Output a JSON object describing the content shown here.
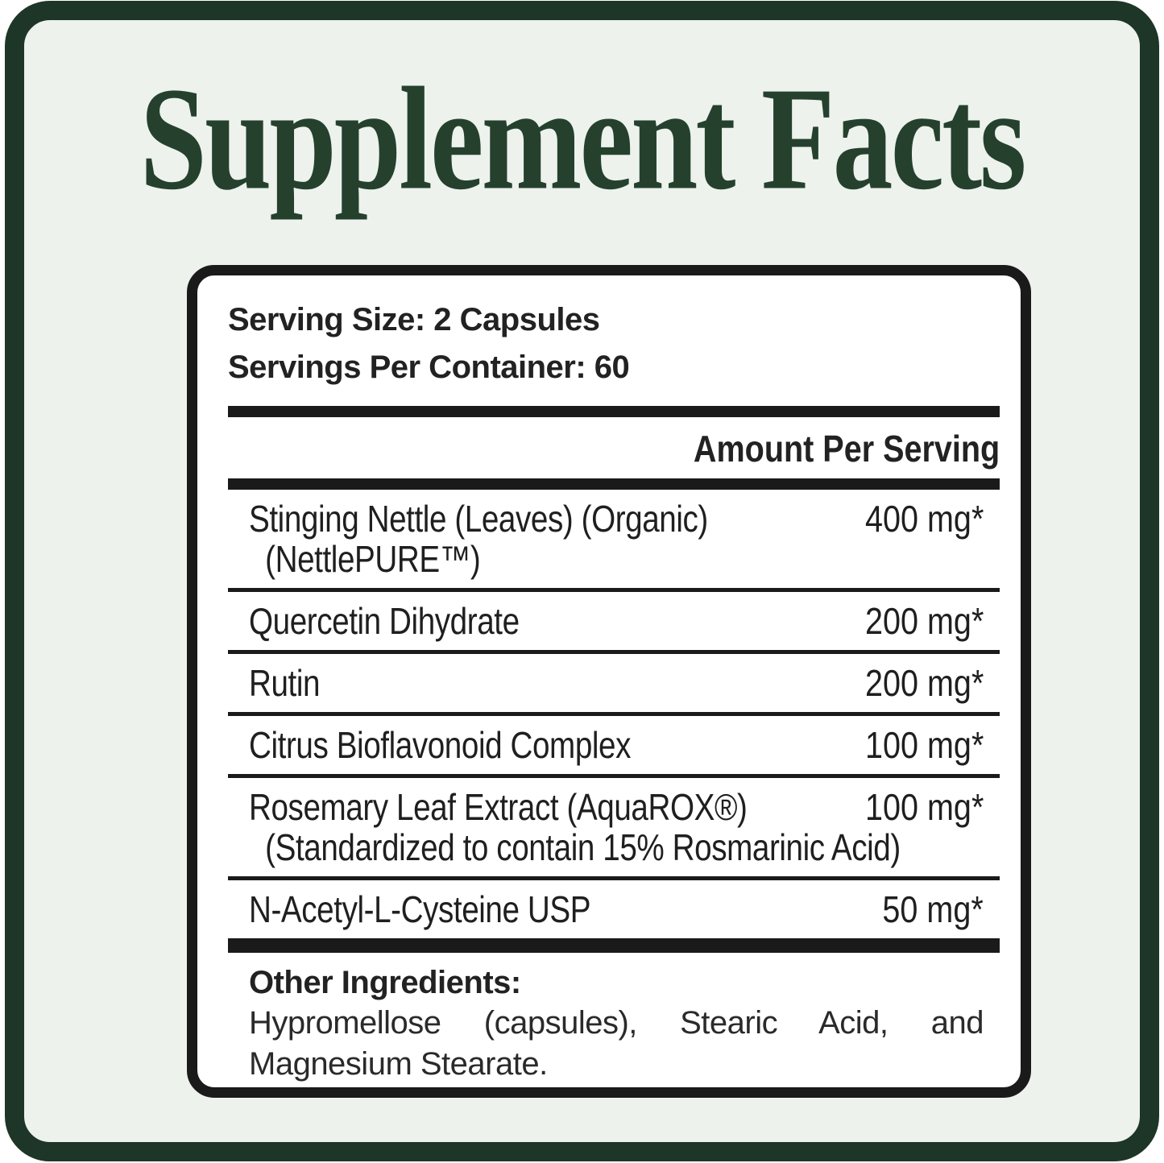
{
  "title": "Supplement Facts",
  "serving": {
    "size": "Serving Size: 2 Capsules",
    "per_container": "Servings Per Container: 60"
  },
  "table": {
    "amount_header": "Amount Per Serving",
    "rows": [
      {
        "name": "Stinging Nettle (Leaves) (Organic)",
        "sub": "(NettlePURE™)",
        "amount": "400 mg*"
      },
      {
        "name": "Quercetin Dihydrate",
        "amount": "200 mg*"
      },
      {
        "name": "Rutin",
        "amount": "200 mg*"
      },
      {
        "name": "Citrus Bioflavonoid Complex",
        "amount": "100 mg*"
      },
      {
        "name": "Rosemary Leaf Extract (AquaROX®)",
        "sub": "(Standardized to contain 15% Rosmarinic Acid)",
        "amount": "100 mg*"
      },
      {
        "name": "N-Acetyl-L-Cysteine USP",
        "amount": "50 mg*"
      }
    ]
  },
  "other_ingredients": {
    "heading": "Other Ingredients:",
    "body": "Hypromellose (capsules), Stearic Acid, and Magnesium Stearate."
  },
  "colors": {
    "frame_green": "#1e3627",
    "title_green": "#25412e",
    "mint_bg": "#edf2ed",
    "rule_black": "#1a1a1a",
    "text_black": "#222222"
  }
}
